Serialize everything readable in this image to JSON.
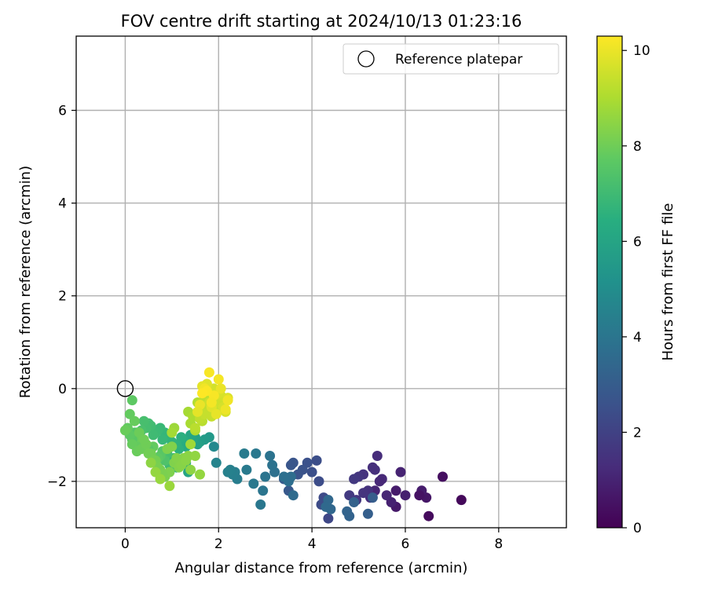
{
  "chart_data": {
    "type": "scatter",
    "title": "FOV centre drift starting at 2024/10/13 01:23:16",
    "xlabel": "Angular distance from reference (arcmin)",
    "ylabel": "Rotation from reference (arcmin)",
    "xlim": [
      -1.05,
      9.45
    ],
    "ylim": [
      -3.0,
      7.6
    ],
    "xticks": [
      0,
      2,
      4,
      6,
      8
    ],
    "yticks": [
      -2,
      0,
      2,
      4,
      6
    ],
    "grid": true,
    "legend": {
      "position": "top-right",
      "entries": [
        "Reference platepar"
      ]
    },
    "reference_point": {
      "label": "Reference platepar",
      "x": 0.0,
      "y": 0.0
    },
    "colorbar": {
      "label": "Hours from first FF file",
      "colormap": "viridis",
      "range": [
        0,
        10.3
      ],
      "ticks": [
        0,
        2,
        4,
        6,
        8,
        10
      ]
    },
    "x": [
      7.2,
      6.8,
      6.5,
      6.45,
      6.35,
      6.3,
      6.0,
      5.9,
      5.8,
      5.8,
      5.7,
      5.6,
      5.5,
      5.45,
      5.4,
      5.35,
      5.35,
      5.3,
      5.25,
      5.2,
      5.1,
      5.1,
      5.0,
      4.95,
      4.9,
      4.8,
      4.35,
      4.3,
      4.25,
      4.2,
      4.15,
      4.1,
      4.0,
      3.9,
      3.8,
      3.7,
      3.6,
      3.55,
      3.5,
      3.5,
      3.4,
      5.3,
      5.2,
      4.9,
      4.8,
      4.75,
      4.4,
      4.35,
      4.3,
      3.6,
      3.55,
      3.5,
      3.4,
      3.2,
      3.15,
      3.1,
      3.0,
      2.95,
      2.9,
      2.8,
      2.75,
      2.6,
      2.55,
      2.4,
      2.35,
      2.3,
      2.25,
      2.2,
      1.95,
      1.9,
      1.8,
      1.7,
      1.6,
      1.55,
      1.5,
      1.45,
      1.4,
      1.35,
      1.3,
      1.25,
      1.2,
      1.15,
      1.1,
      1.0,
      0.9,
      0.85,
      0.8,
      0.75,
      0.7,
      0.65,
      0.6,
      0.55,
      0.5,
      0.45,
      0.4,
      0.35,
      0.3,
      0.25,
      0.2,
      1.35,
      1.3,
      1.2,
      1.1,
      1.05,
      0.95,
      0.9,
      0.85,
      0.8,
      0.75,
      0.7,
      0.6,
      0.5,
      0.4,
      0.3,
      0.25,
      0.2,
      0.15,
      0.1,
      0.05,
      0.15,
      0.25,
      0.35,
      0.45,
      0.55,
      0.65,
      0.75,
      0.85,
      0.95,
      1.05,
      1.15,
      1.25,
      1.35,
      0.0,
      0.1,
      0.15,
      0.2,
      0.3,
      0.4,
      0.5,
      0.6,
      0.7,
      0.8,
      0.9,
      1.0,
      1.1,
      1.2,
      1.3,
      1.4,
      1.5,
      1.6,
      0.55,
      0.65,
      0.75,
      0.95,
      1.05,
      1.4,
      1.0,
      1.35,
      1.4,
      1.45,
      1.5,
      1.55,
      1.6,
      1.65,
      1.7,
      1.75,
      1.8,
      1.85,
      1.9,
      1.95,
      2.0,
      2.05,
      2.1,
      2.15,
      2.2,
      1.5,
      1.6,
      1.7,
      1.8,
      1.9,
      2.0,
      1.75,
      1.85,
      1.65,
      1.95,
      1.8,
      1.7,
      2.0,
      2.05,
      2.15,
      2.2,
      1.9,
      1.75,
      1.85,
      1.6,
      1.55,
      1.65
    ],
    "y": [
      -2.4,
      -1.9,
      -2.75,
      -2.35,
      -2.2,
      -2.3,
      -2.3,
      -1.8,
      -2.55,
      -2.2,
      -2.45,
      -2.3,
      -1.95,
      -2.0,
      -1.45,
      -1.75,
      -2.2,
      -1.7,
      -2.35,
      -2.2,
      -1.85,
      -2.25,
      -1.9,
      -2.4,
      -1.95,
      -2.3,
      -2.8,
      -2.45,
      -2.35,
      -2.5,
      -2.0,
      -1.55,
      -1.8,
      -1.6,
      -1.75,
      -1.85,
      -1.6,
      -1.65,
      -1.95,
      -2.2,
      -1.95,
      -2.35,
      -2.7,
      -2.45,
      -2.75,
      -2.65,
      -2.6,
      -2.4,
      -2.55,
      -2.3,
      -1.9,
      -2.0,
      -1.9,
      -1.8,
      -1.65,
      -1.45,
      -1.9,
      -2.2,
      -2.5,
      -1.4,
      -2.05,
      -1.75,
      -1.4,
      -1.95,
      -1.8,
      -1.85,
      -1.75,
      -1.8,
      -1.6,
      -1.25,
      -1.05,
      -1.1,
      -1.15,
      -1.2,
      -1.05,
      -1.1,
      -1.0,
      -1.2,
      -1.25,
      -1.1,
      -1.05,
      -1.3,
      -1.2,
      -1.15,
      -1.0,
      -0.95,
      -1.1,
      -0.85,
      -0.9,
      -0.95,
      -1.0,
      -0.8,
      -0.75,
      -0.85,
      -0.7,
      -0.9,
      -1.05,
      -0.95,
      -1.0,
      -1.8,
      -1.6,
      -1.55,
      -1.7,
      -1.5,
      -1.65,
      -1.4,
      -1.55,
      -1.35,
      -1.45,
      -1.5,
      -1.25,
      -1.3,
      -1.15,
      -1.2,
      -1.05,
      -0.95,
      -1.1,
      -1.0,
      -0.85,
      -1.2,
      -1.35,
      -1.3,
      -1.2,
      -1.4,
      -1.55,
      -1.75,
      -1.9,
      -1.8,
      -1.6,
      -1.7,
      -1.5,
      -1.45,
      -0.9,
      -0.55,
      -0.25,
      -0.7,
      -0.95,
      -1.1,
      -1.4,
      -1.55,
      -1.7,
      -1.85,
      -1.3,
      -1.25,
      -1.5,
      -1.65,
      -1.55,
      -1.75,
      -1.45,
      -1.85,
      -1.6,
      -1.8,
      -1.95,
      -2.1,
      -0.85,
      -1.2,
      -0.95,
      -0.5,
      -0.75,
      -0.6,
      -0.9,
      -0.3,
      -0.45,
      -0.7,
      -0.2,
      -0.35,
      -0.5,
      -0.6,
      -0.4,
      -0.25,
      -0.3,
      -0.15,
      -0.4,
      -0.5,
      -0.2,
      -0.85,
      -0.65,
      -0.55,
      -0.3,
      0.0,
      -0.1,
      0.1,
      -0.4,
      0.05,
      -0.55,
      0.35,
      0.0,
      0.2,
      0.0,
      -0.45,
      -0.25,
      -0.15,
      -0.05,
      -0.3,
      -0.35,
      -0.5,
      -0.1
    ],
    "color_values": [
      0.2,
      0.4,
      0.3,
      0.6,
      0.8,
      0.5,
      0.9,
      1.0,
      0.7,
      0.75,
      0.95,
      1.1,
      1.2,
      1.15,
      1.3,
      1.4,
      1.05,
      1.35,
      1.25,
      1.45,
      1.5,
      1.55,
      1.6,
      1.65,
      1.7,
      1.75,
      2.2,
      2.25,
      2.3,
      2.35,
      2.4,
      2.45,
      2.5,
      2.55,
      2.6,
      2.65,
      2.7,
      2.75,
      2.8,
      2.85,
      2.9,
      3.0,
      3.1,
      3.2,
      3.25,
      3.3,
      3.4,
      3.45,
      3.5,
      3.6,
      3.65,
      3.7,
      3.75,
      3.8,
      3.85,
      3.9,
      3.95,
      4.0,
      4.05,
      4.1,
      4.15,
      4.2,
      4.25,
      4.3,
      4.35,
      4.4,
      4.45,
      4.5,
      4.6,
      4.8,
      5.5,
      5.6,
      5.7,
      5.8,
      5.9,
      6.0,
      6.1,
      6.2,
      6.3,
      6.4,
      6.5,
      6.55,
      6.6,
      6.65,
      6.7,
      6.75,
      6.8,
      6.85,
      6.9,
      6.95,
      7.0,
      7.05,
      7.1,
      7.15,
      7.2,
      7.25,
      7.3,
      7.35,
      7.4,
      6.0,
      6.2,
      6.4,
      6.6,
      6.8,
      7.0,
      7.2,
      7.4,
      7.5,
      7.6,
      7.7,
      7.8,
      7.6,
      7.7,
      7.8,
      7.9,
      7.5,
      7.6,
      7.7,
      7.8,
      7.85,
      7.9,
      7.95,
      8.0,
      8.05,
      8.1,
      8.15,
      8.2,
      8.25,
      8.3,
      8.35,
      8.4,
      8.45,
      7.9,
      7.8,
      7.7,
      7.85,
      7.95,
      8.0,
      8.05,
      8.1,
      8.15,
      8.2,
      8.25,
      8.3,
      8.35,
      8.4,
      8.45,
      8.5,
      8.55,
      8.6,
      8.5,
      8.6,
      8.65,
      8.7,
      8.75,
      8.8,
      8.85,
      8.9,
      8.95,
      9.0,
      9.05,
      9.1,
      9.15,
      9.2,
      9.25,
      9.3,
      9.35,
      9.4,
      9.45,
      9.5,
      9.55,
      9.6,
      9.65,
      9.7,
      9.75,
      9.2,
      9.3,
      9.4,
      9.5,
      9.6,
      9.7,
      9.8,
      9.85,
      9.9,
      9.95,
      10.2,
      10.1,
      10.15,
      10.0,
      10.05,
      10.1,
      10.2,
      10.25,
      10.15,
      10.0,
      9.9,
      10.3
    ]
  }
}
